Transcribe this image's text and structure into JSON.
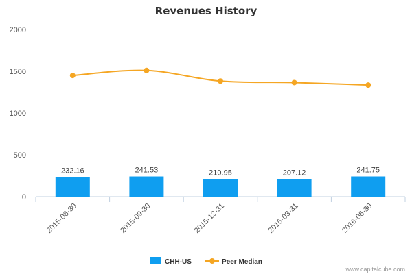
{
  "chart_data": {
    "type": "bar",
    "title": "Revenues History",
    "xlabel": "",
    "ylabel": "",
    "categories": [
      "2015-06-30",
      "2015-09-30",
      "2015-12-31",
      "2016-03-31",
      "2016-06-30"
    ],
    "ylim": [
      0,
      2000
    ],
    "yticks": [
      0,
      500,
      1000,
      1500,
      2000
    ],
    "grid": false,
    "legend_position": "bottom-center",
    "series": [
      {
        "name": "CHH-US",
        "type": "bar",
        "color": "#0f9ef0",
        "values": [
          232.16,
          241.53,
          210.95,
          207.12,
          241.75
        ],
        "labels": [
          "232.16",
          "241.53",
          "210.95",
          "207.12",
          "241.75"
        ]
      },
      {
        "name": "Peer Median",
        "type": "line",
        "color": "#f5a623",
        "values": [
          1450,
          1510,
          1383,
          1365,
          1335
        ]
      }
    ]
  },
  "credit": "www.capitalcube.com"
}
